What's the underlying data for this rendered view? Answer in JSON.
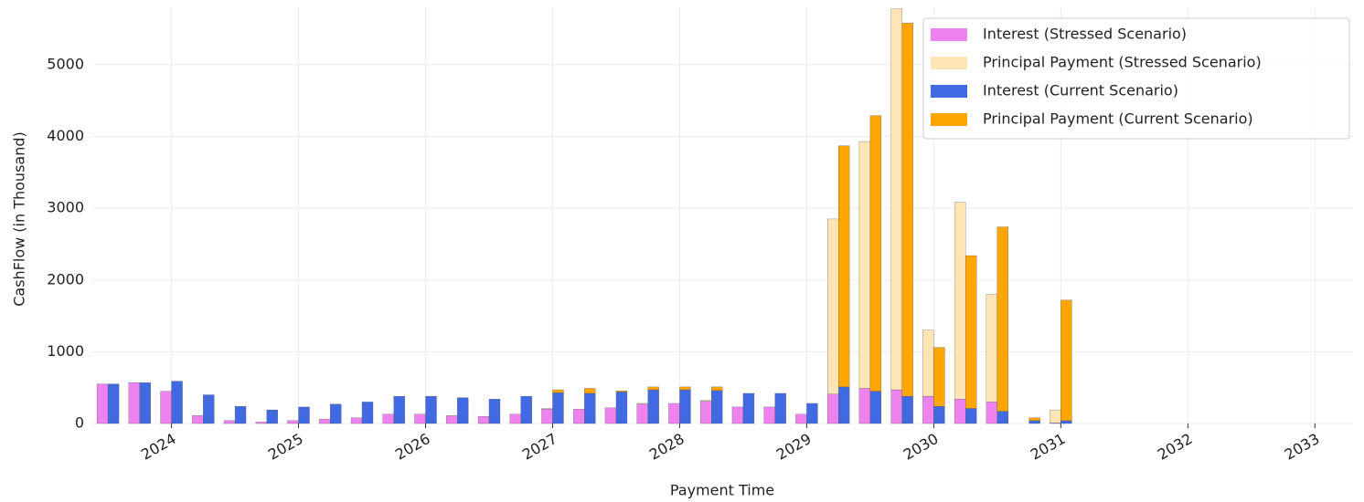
{
  "chart_data": {
    "type": "bar",
    "x_label": "Payment Time",
    "y_label": "CashFlow (in Thousand)",
    "x": [
      2023.5,
      2023.75,
      2024.0,
      2024.25,
      2024.5,
      2024.75,
      2025.0,
      2025.25,
      2025.5,
      2025.75,
      2026.0,
      2026.25,
      2026.5,
      2026.75,
      2027.0,
      2027.25,
      2027.5,
      2027.75,
      2028.0,
      2028.25,
      2028.5,
      2028.75,
      2029.0,
      2029.25,
      2029.5,
      2029.75,
      2030.0,
      2030.25,
      2030.5,
      2030.75,
      2031.0
    ],
    "series": [
      {
        "name": "Interest (Stressed Scenario)",
        "color": "#ee82ee",
        "values": [
          550,
          570,
          450,
          110,
          40,
          20,
          40,
          60,
          80,
          130,
          130,
          110,
          100,
          130,
          200,
          200,
          220,
          270,
          280,
          310,
          230,
          230,
          130,
          410,
          490,
          470,
          380,
          340,
          300,
          0,
          10
        ]
      },
      {
        "name": "Principal Payment (Stressed Scenario)",
        "color": "#ffe4b5",
        "values": [
          0,
          0,
          0,
          0,
          0,
          0,
          0,
          0,
          0,
          0,
          0,
          0,
          0,
          0,
          10,
          0,
          0,
          10,
          0,
          10,
          0,
          0,
          0,
          2440,
          3440,
          5310,
          920,
          2740,
          1500,
          0,
          180
        ]
      },
      {
        "name": "Interest (Current Scenario)",
        "color": "#4169e1",
        "values": [
          550,
          570,
          590,
          400,
          240,
          190,
          230,
          270,
          300,
          380,
          380,
          360,
          340,
          380,
          430,
          420,
          440,
          470,
          470,
          460,
          420,
          420,
          280,
          510,
          450,
          380,
          240,
          210,
          170,
          40,
          40
        ]
      },
      {
        "name": "Principal Payment (Current Scenario)",
        "color": "#ffa500",
        "values": [
          0,
          0,
          0,
          0,
          0,
          0,
          0,
          0,
          0,
          0,
          0,
          0,
          0,
          0,
          40,
          70,
          15,
          40,
          40,
          50,
          0,
          0,
          0,
          3360,
          3840,
          5200,
          820,
          2130,
          2570,
          40,
          1680
        ]
      }
    ],
    "xlim": [
      2023.37,
      2033.3
    ],
    "xticks": [
      2024,
      2025,
      2026,
      2027,
      2028,
      2029,
      2030,
      2031,
      2032,
      2033
    ],
    "ylim": [
      0,
      5800
    ],
    "yticks": [
      0,
      1000,
      2000,
      3000,
      4000,
      5000
    ],
    "grid": true,
    "legend": "upper right"
  }
}
